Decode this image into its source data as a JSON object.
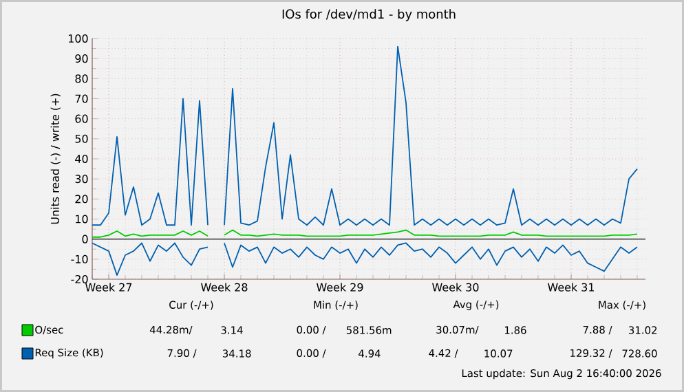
{
  "chart_data": {
    "type": "line",
    "title": "IOs for /dev/md1 - by month",
    "ylabel": "Units read (-) / write (+)",
    "categories": [
      null,
      null,
      "Week 27",
      null,
      null,
      null,
      null,
      null,
      null,
      null,
      null,
      null,
      null,
      null,
      null,
      null,
      "Week 28",
      null,
      null,
      null,
      null,
      null,
      null,
      null,
      null,
      null,
      null,
      null,
      null,
      null,
      "Week 29",
      null,
      null,
      null,
      null,
      null,
      null,
      null,
      null,
      null,
      null,
      null,
      null,
      null,
      "Week 30",
      null,
      null,
      null,
      null,
      null,
      null,
      null,
      null,
      null,
      null,
      null,
      null,
      null,
      "Week 31",
      null,
      null,
      null,
      null,
      null,
      null,
      null,
      null
    ],
    "ylim": [
      -20,
      100
    ],
    "yticks": [
      -20,
      -10,
      0,
      10,
      20,
      30,
      40,
      50,
      60,
      70,
      80,
      90,
      100
    ],
    "grid": true,
    "legend": "bottom",
    "ref_lines": [
      {
        "axis": "y",
        "value": 0,
        "color": "#000000"
      }
    ],
    "series": [
      {
        "name": "O/sec",
        "color": "#00cc00",
        "values": [
          1,
          1,
          2,
          4,
          1.5,
          2.5,
          1.5,
          2,
          2,
          2,
          2,
          4,
          2,
          4,
          1.5,
          null,
          2,
          4.5,
          2,
          2,
          1.5,
          2,
          2.5,
          2,
          2,
          2,
          1.5,
          1.5,
          1.5,
          1.5,
          1.5,
          2,
          2,
          2,
          2,
          2.5,
          3,
          3.5,
          4.5,
          2,
          2,
          2,
          1.5,
          1.5,
          1.5,
          1.5,
          1.5,
          1.5,
          2,
          2,
          2,
          3.5,
          2,
          2,
          2,
          1.5,
          1.5,
          1.5,
          1.5,
          1.5,
          1.5,
          1.5,
          1.5,
          2,
          2,
          2,
          2.5
        ]
      },
      {
        "name": "Req Size (KB)",
        "color": "#0060b0",
        "values": [
          7,
          7,
          13,
          51,
          12,
          26,
          7,
          10,
          23,
          7,
          7,
          70,
          7,
          69,
          7,
          null,
          7,
          75,
          8,
          7,
          9,
          36,
          58,
          10,
          42,
          10,
          7,
          11,
          7,
          25,
          7,
          10,
          7,
          10,
          7,
          10,
          7,
          96,
          68,
          7,
          10,
          7,
          10,
          7,
          10,
          7,
          10,
          7,
          10,
          7,
          8,
          25,
          7,
          10,
          7,
          10,
          7,
          10,
          7,
          10,
          7,
          10,
          7,
          10,
          8,
          30,
          35
        ]
      },
      {
        "color": "#0060b0",
        "values": [
          -2,
          -4,
          -6,
          -18,
          -8,
          -6,
          -2,
          -11,
          -3,
          -6,
          -2,
          -9,
          -13,
          -5,
          -4,
          null,
          -2,
          -14,
          -3,
          -6,
          -4,
          -12,
          -4,
          -7,
          -5,
          -9,
          -4,
          -8,
          -10,
          -4,
          -7,
          -5,
          -12,
          -5,
          -9,
          -4,
          -8,
          -3,
          -2,
          -6,
          -5,
          -9,
          -4,
          -7,
          -12,
          -8,
          -4,
          -10,
          -5,
          -13,
          -6,
          -4,
          -9,
          -5,
          -11,
          -4,
          -7,
          -3,
          -8,
          -6,
          -12,
          -14,
          -16,
          -10,
          -4,
          -7,
          -4
        ]
      }
    ],
    "annotations": [
      "Cur (-/+)",
      "Min (-/+)",
      "Avg (-/+)",
      "Max (-/+)",
      "44.28m/",
      "3.14",
      "0.00 /",
      "581.56m",
      "30.07m/",
      "1.86",
      "7.88 /",
      "31.02",
      "7.90 /",
      "34.18",
      "0.00 /",
      "4.94",
      "4.42 /",
      "10.07",
      "129.32 /",
      "728.60",
      "Last update: Sun Aug  2 16:40:00 2026"
    ]
  }
}
